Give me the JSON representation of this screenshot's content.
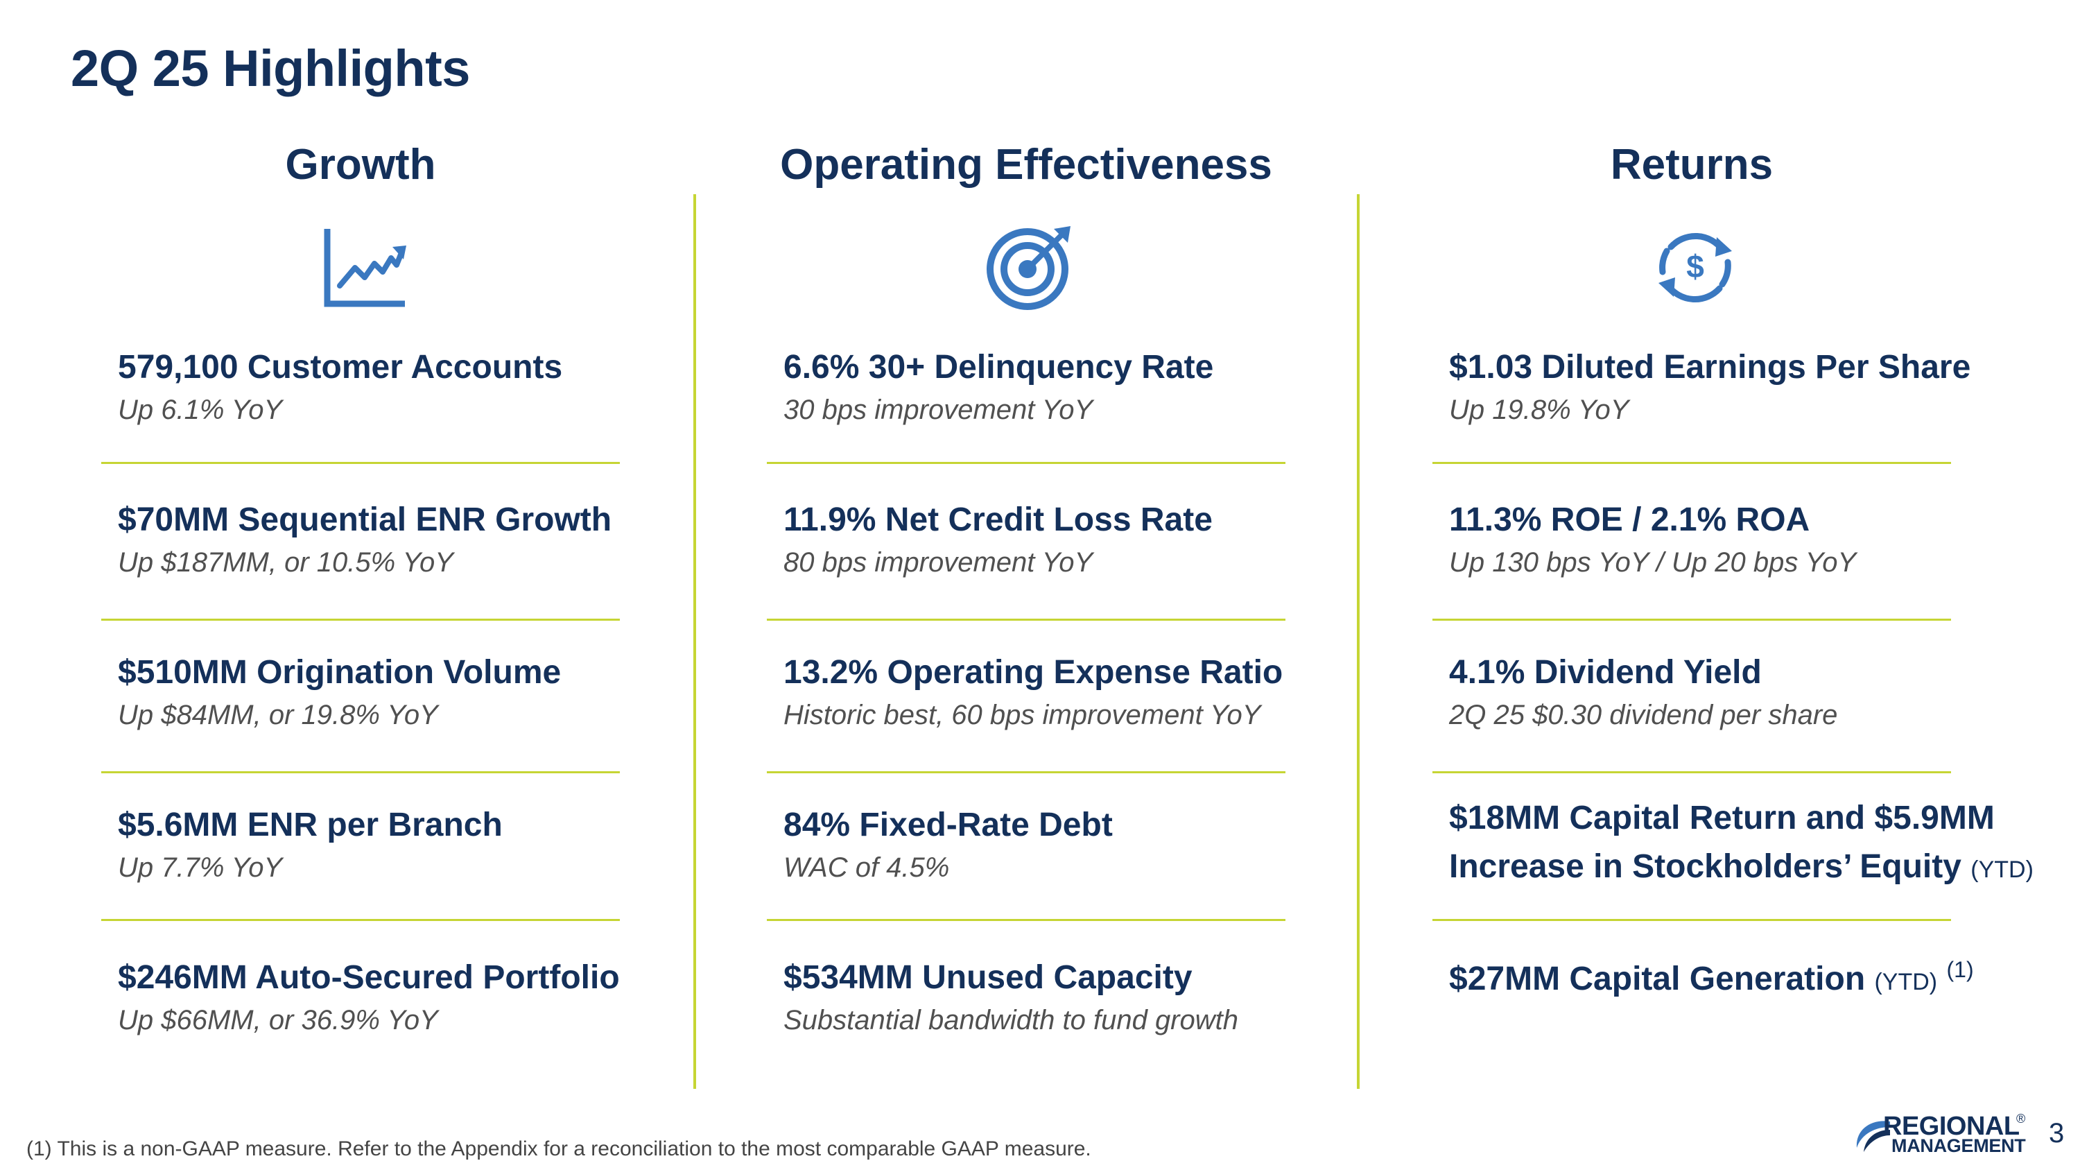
{
  "slide": {
    "title": "2Q 25 Highlights",
    "page_number": "3"
  },
  "columns": [
    {
      "heading": "Growth",
      "icon": "line-chart-icon",
      "items": [
        {
          "head": "579,100 Customer Accounts",
          "sub": "Up 6.1% YoY"
        },
        {
          "head": "$70MM Sequential ENR Growth",
          "sub": "Up $187MM, or 10.5% YoY"
        },
        {
          "head": "$510MM Origination Volume",
          "sub": "Up $84MM, or 19.8% YoY"
        },
        {
          "head": "$5.6MM ENR per Branch",
          "sub": "Up 7.7% YoY"
        },
        {
          "head": "$246MM Auto-Secured Portfolio",
          "sub": "Up $66MM, or 36.9% YoY"
        }
      ]
    },
    {
      "heading": "Operating Effectiveness",
      "icon": "target-icon",
      "items": [
        {
          "head": "6.6% 30+ Delinquency Rate",
          "sub": "30 bps improvement YoY"
        },
        {
          "head": "11.9% Net Credit Loss Rate",
          "sub": "80 bps improvement YoY"
        },
        {
          "head": "13.2% Operating Expense Ratio",
          "sub": "Historic best, 60 bps improvement YoY"
        },
        {
          "head": "84% Fixed-Rate Debt",
          "sub": "WAC of 4.5%"
        },
        {
          "head": "$534MM Unused Capacity",
          "sub": "Substantial bandwidth to fund growth"
        }
      ]
    },
    {
      "heading": "Returns",
      "icon": "dollar-cycle-icon",
      "items": [
        {
          "head": "$1.03 Diluted Earnings Per Share",
          "sub": "Up 19.8% YoY"
        },
        {
          "head": "11.3% ROE / 2.1% ROA",
          "sub": "Up 130 bps YoY / Up 20 bps YoY"
        },
        {
          "head": "4.1% Dividend Yield",
          "sub": "2Q 25 $0.30 dividend per share"
        },
        {
          "head_line1": "$18MM Capital Return and $5.9MM",
          "head_line2": "Increase in Stockholders’ Equity",
          "qualifier": "(YTD)"
        },
        {
          "head": "$27MM Capital Generation",
          "qualifier": "(YTD)",
          "footnote_ref": "(1)"
        }
      ]
    }
  ],
  "footnote": "(1) This is a non-GAAP measure. Refer to the Appendix for a reconciliation to the most comparable GAAP measure.",
  "logo": {
    "line1": "REGIONAL",
    "line2": "MANAGEMENT",
    "mark": "®"
  },
  "colors": {
    "navy": "#14305a",
    "accent_blue": "#3a78c0",
    "divider_green": "#c6d534",
    "sub_gray": "#505050"
  }
}
